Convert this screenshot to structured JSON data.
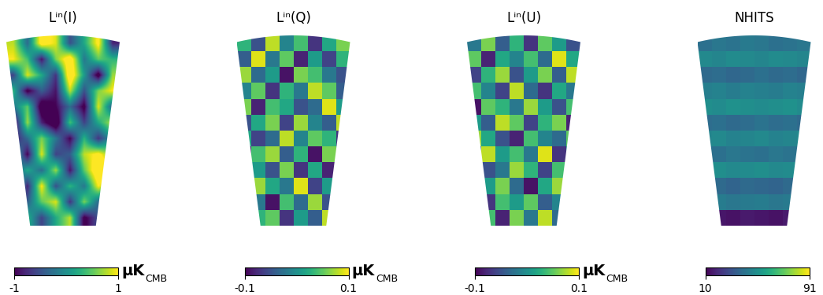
{
  "chart_data": [
    {
      "type": "heatmap",
      "title": "Lⁱⁿ(I)",
      "unit": "μK",
      "unit_subscript": "CMB",
      "colorbar": {
        "range": [
          -1,
          1
        ],
        "ticks": [
          -1,
          1
        ]
      },
      "cells": [
        [
          0.8,
          -0.3,
          1.2,
          0.9,
          -0.5,
          0.2,
          1.1,
          -0.8
        ],
        [
          1.0,
          0.4,
          -0.9,
          0.6,
          1.3,
          -0.2,
          0.5,
          0.3
        ],
        [
          -0.6,
          0.9,
          0.2,
          -0.7,
          1.4,
          0.1,
          -1.2,
          0.7
        ],
        [
          0.3,
          -1.1,
          -0.4,
          -0.9,
          0.8,
          -0.5,
          0.6,
          1.0
        ],
        [
          -0.2,
          0.5,
          -1.3,
          -1.0,
          -0.3,
          -1.1,
          0.9,
          -0.4
        ],
        [
          -1.2,
          0.7,
          -0.8,
          -1.4,
          0.4,
          -0.6,
          0.2,
          0.8
        ],
        [
          -0.9,
          -0.3,
          0.6,
          -0.2,
          -1.0,
          0.3,
          -0.7,
          0.1
        ],
        [
          0.4,
          -1.0,
          0.9,
          -0.6,
          -0.4,
          0.8,
          1.1,
          0.5
        ],
        [
          -0.5,
          0.2,
          -0.3,
          0.7,
          -0.9,
          0.5,
          1.4,
          1.2
        ],
        [
          0.6,
          -0.8,
          1.0,
          -0.5,
          0.3,
          -0.2,
          1.0,
          0.4
        ],
        [
          -1.0,
          -0.4,
          0.5,
          0.9,
          -0.7,
          0.6,
          -0.3,
          -0.9
        ],
        [
          -1.3,
          0.3,
          -0.6,
          0.2,
          0.8,
          -1.1,
          -0.5,
          0.2
        ]
      ]
    },
    {
      "type": "heatmap",
      "title": "Lⁱⁿ(Q)",
      "unit": "μK",
      "unit_subscript": "CMB",
      "colorbar": {
        "range": [
          -0.1,
          0.1
        ],
        "ticks": [
          -0.1,
          0.1
        ]
      },
      "cells": [
        [
          0.03,
          -0.05,
          0.08,
          -0.01,
          0.04,
          -0.07,
          0.02,
          0.06
        ],
        [
          -0.04,
          0.09,
          -0.02,
          0.05,
          -0.08,
          0.01,
          -0.06,
          0.03
        ],
        [
          0.07,
          -0.03,
          0.01,
          -0.09,
          0.06,
          0.04,
          -0.02,
          -0.05
        ],
        [
          -0.01,
          0.05,
          -0.07,
          0.03,
          -0.02,
          0.08,
          0.05,
          -0.04
        ],
        [
          0.06,
          -0.08,
          0.04,
          0.02,
          -0.05,
          -0.03,
          0.09,
          0.01
        ],
        [
          -0.05,
          0.02,
          0.06,
          -0.06,
          0.07,
          -0.01,
          -0.04,
          0.08
        ],
        [
          0.02,
          -0.06,
          -0.03,
          0.08,
          -0.01,
          0.05,
          0.03,
          -0.07
        ],
        [
          -0.08,
          0.04,
          0.07,
          -0.04,
          0.03,
          -0.09,
          0.06,
          0.02
        ],
        [
          0.05,
          0.01,
          -0.05,
          0.06,
          -0.07,
          0.02,
          -0.08,
          0.04
        ],
        [
          -0.03,
          0.07,
          0.02,
          -0.02,
          0.09,
          -0.06,
          0.01,
          -0.01
        ],
        [
          0.08,
          -0.02,
          -0.09,
          0.04,
          -0.03,
          0.07,
          -0.05,
          0.05
        ],
        [
          -0.06,
          0.03,
          0.05,
          -0.07,
          0.01,
          -0.04,
          0.08,
          -0.03
        ]
      ]
    },
    {
      "type": "heatmap",
      "title": "Lⁱⁿ(U)",
      "unit": "μK",
      "unit_subscript": "CMB",
      "colorbar": {
        "range": [
          -0.1,
          0.1
        ],
        "ticks": [
          -0.1,
          0.1
        ]
      },
      "cells": [
        [
          -0.02,
          0.06,
          -0.04,
          0.03,
          -0.07,
          0.05,
          0.01,
          -0.05
        ],
        [
          0.05,
          -0.08,
          0.02,
          -0.01,
          0.04,
          -0.03,
          0.09,
          0.02
        ],
        [
          -0.06,
          0.03,
          0.07,
          -0.05,
          0.01,
          0.06,
          -0.04,
          0.08
        ],
        [
          0.04,
          -0.01,
          -0.06,
          0.08,
          -0.03,
          -0.07,
          0.02,
          -0.02
        ],
        [
          -0.09,
          0.05,
          0.03,
          -0.02,
          0.07,
          0.01,
          -0.05,
          0.04
        ],
        [
          0.01,
          -0.04,
          0.08,
          0.05,
          -0.06,
          0.03,
          0.06,
          -0.08
        ],
        [
          0.07,
          0.02,
          -0.05,
          -0.08,
          0.04,
          -0.01,
          -0.03,
          0.05
        ],
        [
          -0.03,
          0.08,
          0.01,
          0.04,
          -0.02,
          0.09,
          -0.07,
          -0.01
        ],
        [
          0.06,
          -0.05,
          -0.02,
          0.07,
          0.03,
          -0.06,
          0.04,
          0.02
        ],
        [
          -0.04,
          0.01,
          0.06,
          -0.03,
          -0.09,
          0.02,
          0.07,
          -0.06
        ],
        [
          0.02,
          -0.07,
          0.04,
          0.01,
          0.05,
          -0.04,
          -0.01,
          0.09
        ],
        [
          -0.07,
          0.04,
          -0.08,
          0.06,
          -0.02,
          0.08,
          -0.03,
          0.01
        ]
      ]
    },
    {
      "type": "heatmap",
      "title": "NHITS",
      "colorbar": {
        "range": [
          10,
          91
        ],
        "ticks": [
          10,
          91
        ]
      },
      "cells": [
        [
          40,
          42,
          41,
          43,
          42,
          40,
          41,
          42
        ],
        [
          48,
          47,
          49,
          48,
          47,
          49,
          48,
          47
        ],
        [
          38,
          39,
          37,
          38,
          40,
          38,
          39,
          37
        ],
        [
          45,
          46,
          44,
          46,
          45,
          44,
          46,
          45
        ],
        [
          50,
          49,
          51,
          50,
          49,
          50,
          51,
          49
        ],
        [
          39,
          40,
          38,
          39,
          41,
          39,
          40,
          38
        ],
        [
          47,
          48,
          46,
          47,
          48,
          46,
          47,
          48
        ],
        [
          41,
          40,
          42,
          41,
          40,
          42,
          41,
          40
        ],
        [
          49,
          50,
          48,
          49,
          50,
          48,
          49,
          50
        ],
        [
          37,
          38,
          36,
          38,
          37,
          36,
          38,
          37
        ],
        [
          43,
          44,
          42,
          43,
          44,
          42,
          43,
          44
        ],
        [
          18,
          15,
          14,
          16,
          15,
          14,
          16,
          19
        ]
      ]
    }
  ]
}
